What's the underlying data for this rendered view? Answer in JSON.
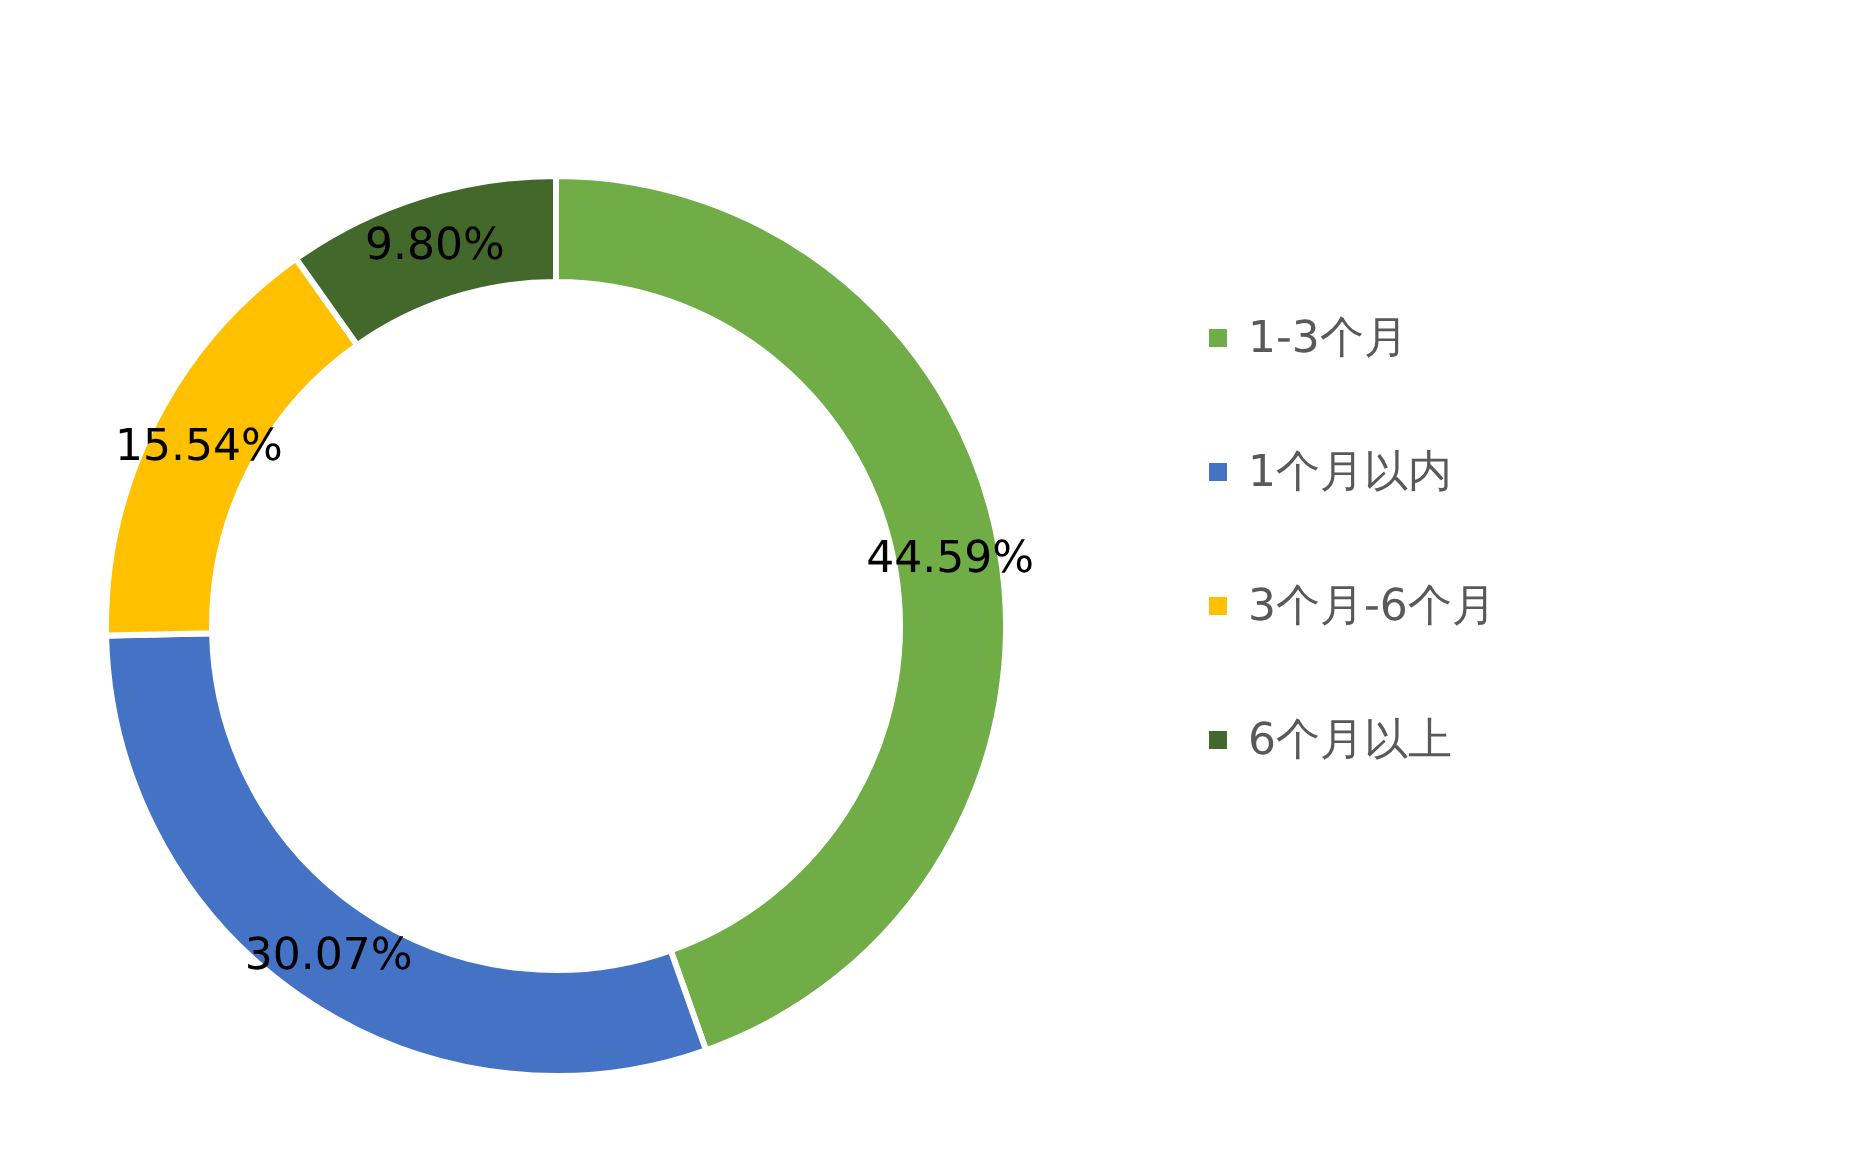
{
  "chart_data": {
    "type": "donut",
    "categories": [
      "1-3个月",
      "1个月以内",
      "3个月-6个月",
      "6个月以上"
    ],
    "values": [
      44.59,
      30.07,
      15.54,
      9.8
    ],
    "colors": [
      "#70ad47",
      "#4472c4",
      "#ffc000",
      "#43682b"
    ],
    "value_labels": [
      "44.59%",
      "30.07%",
      "15.54%",
      "9.80%"
    ],
    "legend": "right"
  }
}
